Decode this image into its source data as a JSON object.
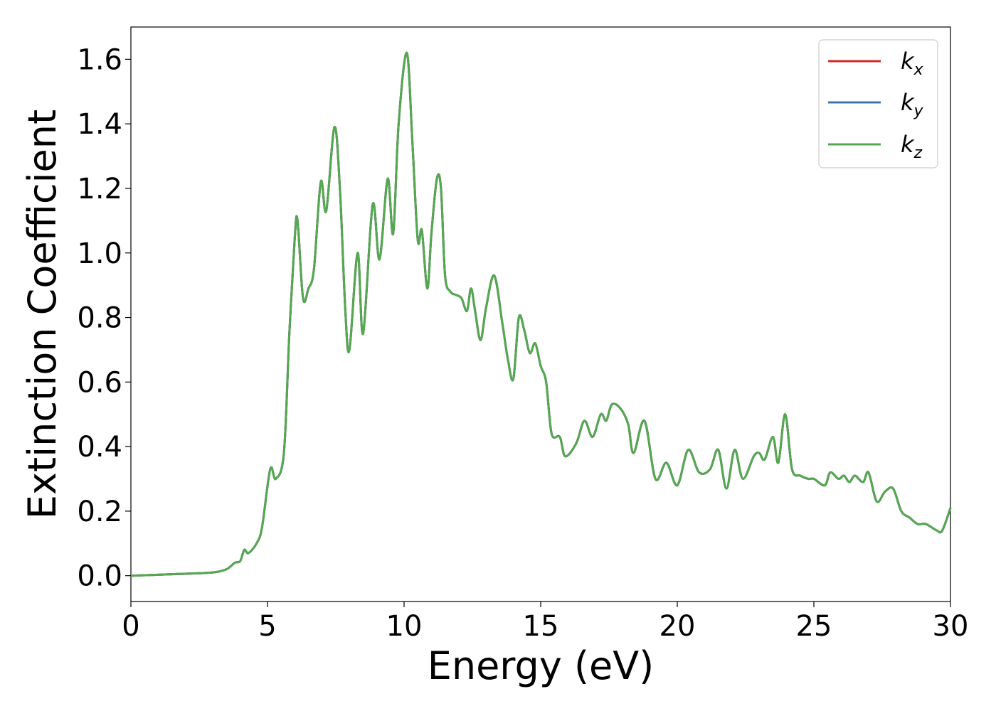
{
  "chart_data": {
    "type": "line",
    "title": "",
    "xlabel": "Energy (eV)",
    "ylabel": "Extinction Coefficient",
    "xlim": [
      0,
      30
    ],
    "ylim": [
      -0.08,
      1.7
    ],
    "xticks": [
      0,
      5,
      10,
      15,
      20,
      25,
      30
    ],
    "yticks": [
      0.0,
      0.2,
      0.4,
      0.6,
      0.8,
      1.0,
      1.2,
      1.4,
      1.6
    ],
    "xtick_labels": [
      "0",
      "5",
      "10",
      "15",
      "20",
      "25",
      "30"
    ],
    "ytick_labels": [
      "0.0",
      "0.2",
      "0.4",
      "0.6",
      "0.8",
      "1.0",
      "1.2",
      "1.4",
      "1.6"
    ],
    "grid": false,
    "legend_position": "top-right",
    "series": [
      {
        "name": "k_x",
        "main": "k",
        "sub": "x",
        "color": "#d62728",
        "points": "shared"
      },
      {
        "name": "k_y",
        "main": "k",
        "sub": "y",
        "color": "#3a78b0",
        "points": "shared"
      },
      {
        "name": "k_z",
        "main": "k",
        "sub": "z",
        "color": "#55a851",
        "points": "shared"
      }
    ],
    "shared_points": {
      "x": [
        0,
        1,
        2,
        3,
        3.5,
        3.8,
        4.0,
        4.15,
        4.3,
        4.6,
        4.8,
        5.1,
        5.3,
        5.6,
        5.8,
        6.0,
        6.1,
        6.3,
        6.5,
        6.7,
        6.95,
        7.15,
        7.45,
        7.65,
        7.85,
        8.0,
        8.3,
        8.5,
        8.85,
        9.1,
        9.4,
        9.6,
        9.8,
        10.1,
        10.3,
        10.5,
        10.65,
        10.85,
        11.0,
        11.2,
        11.35,
        11.5,
        11.7,
        11.9,
        12.1,
        12.3,
        12.45,
        12.6,
        12.8,
        13.0,
        13.3,
        13.6,
        13.8,
        14.0,
        14.2,
        14.4,
        14.6,
        14.8,
        15.0,
        15.2,
        15.4,
        15.7,
        15.9,
        16.3,
        16.6,
        16.9,
        17.2,
        17.4,
        17.6,
        17.9,
        18.2,
        18.4,
        18.8,
        19.2,
        19.6,
        20.0,
        20.4,
        20.8,
        21.2,
        21.5,
        21.8,
        22.1,
        22.4,
        22.8,
        23.0,
        23.2,
        23.5,
        23.7,
        23.95,
        24.2,
        24.5,
        24.8,
        25.0,
        25.4,
        25.6,
        25.9,
        26.1,
        26.3,
        26.5,
        26.8,
        27.0,
        27.3,
        27.6,
        27.9,
        28.2,
        28.5,
        28.8,
        29.1,
        29.5,
        29.7,
        30.0
      ],
      "y": [
        0.0,
        0.003,
        0.006,
        0.01,
        0.02,
        0.04,
        0.045,
        0.08,
        0.07,
        0.1,
        0.15,
        0.33,
        0.3,
        0.38,
        0.75,
        1.05,
        1.1,
        0.86,
        0.89,
        0.95,
        1.22,
        1.13,
        1.39,
        1.2,
        0.82,
        0.7,
        1.0,
        0.75,
        1.15,
        0.98,
        1.23,
        1.06,
        1.4,
        1.62,
        1.35,
        1.04,
        1.07,
        0.89,
        1.06,
        1.23,
        1.2,
        0.93,
        0.88,
        0.87,
        0.86,
        0.82,
        0.89,
        0.82,
        0.73,
        0.83,
        0.93,
        0.78,
        0.67,
        0.61,
        0.8,
        0.76,
        0.69,
        0.72,
        0.65,
        0.6,
        0.44,
        0.43,
        0.37,
        0.41,
        0.48,
        0.43,
        0.5,
        0.48,
        0.53,
        0.52,
        0.47,
        0.38,
        0.48,
        0.3,
        0.35,
        0.28,
        0.39,
        0.32,
        0.33,
        0.39,
        0.27,
        0.39,
        0.3,
        0.37,
        0.38,
        0.36,
        0.43,
        0.35,
        0.5,
        0.33,
        0.31,
        0.3,
        0.3,
        0.28,
        0.32,
        0.3,
        0.31,
        0.29,
        0.31,
        0.29,
        0.32,
        0.23,
        0.26,
        0.27,
        0.2,
        0.18,
        0.16,
        0.16,
        0.14,
        0.14,
        0.21
      ]
    }
  }
}
